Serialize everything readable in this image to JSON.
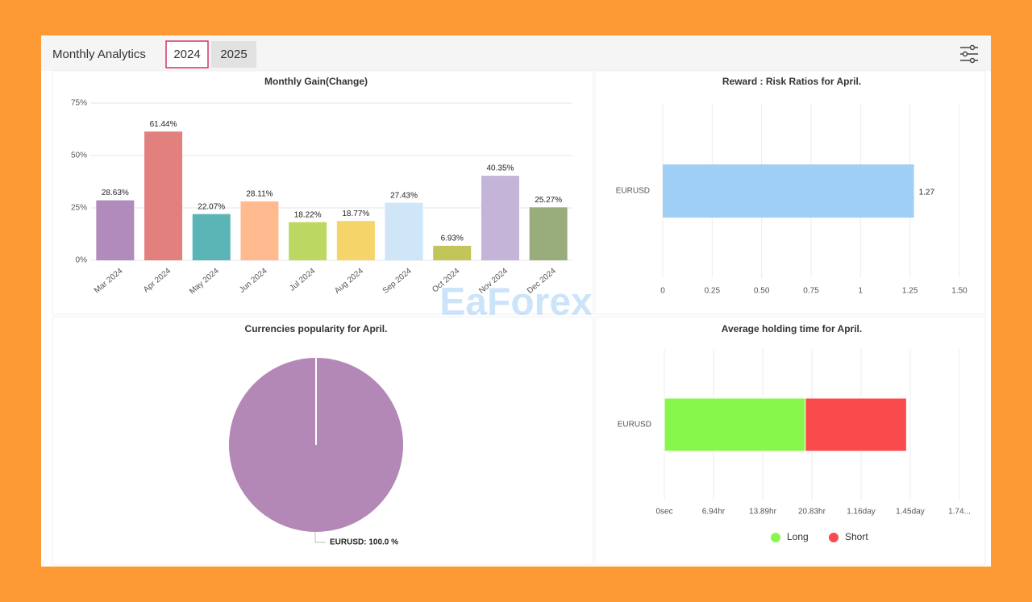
{
  "header": {
    "title": "Monthly Analytics",
    "tabs": [
      "2024",
      "2025"
    ]
  },
  "watermark": "EaForex",
  "chart_data": [
    {
      "type": "bar",
      "title": "Monthly Gain(Change)",
      "categories": [
        "Mar 2024",
        "Apr 2024",
        "May 2024",
        "Jun 2024",
        "Jul 2024",
        "Aug 2024",
        "Sep 2024",
        "Oct 2024",
        "Nov 2024",
        "Dec 2024"
      ],
      "values": [
        28.63,
        61.44,
        22.07,
        28.11,
        18.22,
        18.77,
        27.43,
        6.93,
        40.35,
        25.27
      ],
      "value_labels": [
        "28.63%",
        "61.44%",
        "22.07%",
        "28.11%",
        "18.22%",
        "18.77%",
        "27.43%",
        "6.93%",
        "40.35%",
        "25.27%"
      ],
      "colors": [
        "#b08bbb",
        "#e2807e",
        "#5bb5b6",
        "#ffba8f",
        "#bcd862",
        "#f5d56a",
        "#cfe5f8",
        "#c2c65a",
        "#c4b5d8",
        "#99ac7c"
      ],
      "ylim": [
        0,
        75
      ],
      "yticks": [
        {
          "value": 0,
          "label": "0%"
        },
        {
          "value": 25,
          "label": "25%"
        },
        {
          "value": 50,
          "label": "50%"
        },
        {
          "value": 75,
          "label": "75%"
        }
      ],
      "grid": true
    },
    {
      "type": "hbar",
      "title": "Reward : Risk Ratios for April.",
      "categories": [
        "EURUSD"
      ],
      "values": [
        1.27
      ],
      "color": "#a0cff5",
      "xlim": [
        0,
        1.5
      ],
      "xticks": [
        0,
        0.25,
        {
          "value": 0.5,
          "label": "0.50"
        },
        0.75,
        1,
        1.25,
        {
          "value": 1.5,
          "label": "1.50"
        }
      ],
      "grid": true
    },
    {
      "type": "pie",
      "title": "Currencies popularity for April.",
      "categories": [
        "EURUSD"
      ],
      "values": [
        100
      ],
      "value_labels": [
        "EURUSD: 100.0 %"
      ],
      "colors": [
        "#b388b6"
      ]
    },
    {
      "type": "stacked-hbar",
      "title": "Average holding time for April.",
      "categories": [
        "EURUSD"
      ],
      "series": [
        {
          "name": "Long",
          "color": "#88f74b",
          "values": [
            19.9
          ]
        },
        {
          "name": "Short",
          "color": "#f94b4b",
          "values": [
            14.3
          ]
        }
      ],
      "xlim": [
        0,
        41.67
      ],
      "xticks": [
        {
          "value": 0,
          "label": "0sec"
        },
        {
          "value": 6.94,
          "label": "6.94hr"
        },
        {
          "value": 13.89,
          "label": "13.89hr"
        },
        {
          "value": 20.83,
          "label": "20.83hr"
        },
        {
          "value": 27.78,
          "label": "1.16day"
        },
        {
          "value": 34.72,
          "label": "1.45day"
        },
        {
          "value": 41.67,
          "label": "1.74..."
        }
      ],
      "grid": true,
      "legend": "bottom"
    }
  ]
}
